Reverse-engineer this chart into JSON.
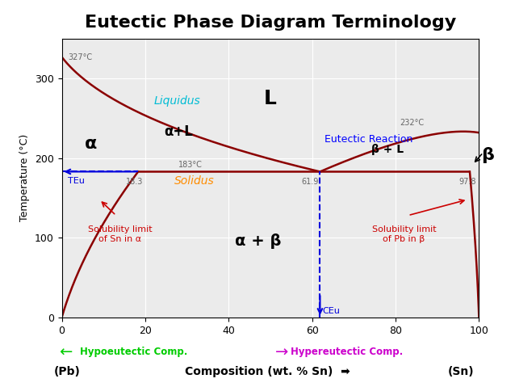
{
  "title": "Eutectic Phase Diagram Terminology",
  "title_fontsize": 16,
  "title_fontweight": "bold",
  "xlabel": "Composition (wt. % Sn)",
  "ylabel": "Temperature (°C)",
  "xlim": [
    0,
    100
  ],
  "ylim": [
    0,
    350
  ],
  "background_color": "#ffffff",
  "plot_bg_color": "#ebebeb",
  "curve_color": "#8b0000",
  "xticks": [
    0,
    20,
    40,
    60,
    80,
    100
  ],
  "yticks": [
    0,
    100,
    200,
    300
  ],
  "label_327": "327°C",
  "label_232": "232°C",
  "label_183": "183°C",
  "label_18": "18.3",
  "label_619": "61.9",
  "label_978": "97.8",
  "label_TEu": "TEu",
  "label_CEu": "CEu",
  "label_L": "L",
  "label_alpha": "α",
  "label_alpha_L": "α+L",
  "label_alpha_beta": "α + β",
  "label_beta_L": "β + L",
  "label_beta": "β",
  "label_liquidus": "Liquidus",
  "label_solidus": "Solidus",
  "label_eutectic_reaction": "Eutectic Reaction",
  "label_sol_sn_alpha": "Solubility limit\nof Sn in α",
  "label_sol_pb_beta": "Solubility limit\nof Pb in β",
  "label_hypo": "Hypoeutectic Comp.",
  "label_hyper": "Hypereutectic Comp.",
  "label_pb": "(Pb)",
  "label_sn": "(Sn)",
  "red_color": "#cc0000",
  "cyan_color": "#00bcd4",
  "orange_color": "#ff8c00",
  "blue_color": "#0000ff",
  "green_color": "#00cc00",
  "magenta_color": "#cc00cc",
  "dashed_blue_color": "#0000dd",
  "gray_color": "#666666"
}
